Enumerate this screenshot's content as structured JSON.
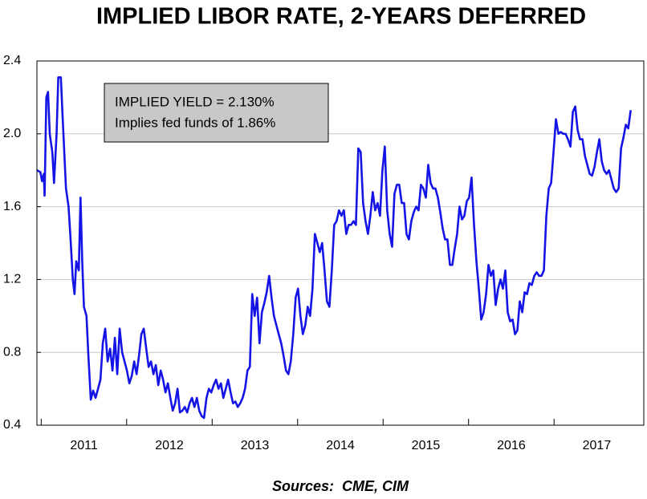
{
  "chart_data": {
    "type": "line",
    "title": "IMPLIED LIBOR RATE, 2-YEARS DEFERRED",
    "annotations": [
      "IMPLIED YIELD = 2.130%",
      "Implies fed funds of 1.86%"
    ],
    "source": "Sources:  CME, CIM",
    "xlim": [
      2010.95,
      2018.05
    ],
    "xticks": [
      2011,
      2012,
      2013,
      2014,
      2015,
      2016,
      2017
    ],
    "ylim": [
      0.4,
      2.4
    ],
    "yticks": [
      0.4,
      0.8,
      1.2,
      1.6,
      {
        "value": 2,
        "label": "2.0"
      },
      2.4
    ],
    "grid": true,
    "x": [
      2010.95,
      2010.99,
      2011.01,
      2011.03,
      2011.04,
      2011.06,
      2011.08,
      2011.1,
      2011.13,
      2011.15,
      2011.18,
      2011.2,
      2011.23,
      2011.25,
      2011.27,
      2011.29,
      2011.32,
      2011.34,
      2011.37,
      2011.39,
      2011.41,
      2011.44,
      2011.46,
      2011.48,
      2011.5,
      2011.53,
      2011.55,
      2011.58,
      2011.608,
      2011.636,
      2011.665,
      2011.693,
      2011.721,
      2011.749,
      2011.777,
      2011.806,
      2011.834,
      2011.862,
      2011.89,
      2011.918,
      2011.947,
      2011.975,
      2012.003,
      2012.031,
      2012.059,
      2012.088,
      2012.116,
      2012.144,
      2012.172,
      2012.2,
      2012.229,
      2012.257,
      2012.285,
      2012.313,
      2012.341,
      2012.37,
      2012.398,
      2012.426,
      2012.454,
      2012.482,
      2012.511,
      2012.539,
      2012.567,
      2012.595,
      2012.623,
      2012.652,
      2012.68,
      2012.708,
      2012.736,
      2012.764,
      2012.793,
      2012.821,
      2012.849,
      2012.877,
      2012.905,
      2012.934,
      2012.962,
      2012.99,
      2013.018,
      2013.046,
      2013.075,
      2013.103,
      2013.131,
      2013.159,
      2013.187,
      2013.216,
      2013.244,
      2013.272,
      2013.3,
      2013.328,
      2013.357,
      2013.385,
      2013.413,
      2013.441,
      2013.469,
      2013.497,
      2013.526,
      2013.554,
      2013.582,
      2013.61,
      2013.638,
      2013.667,
      2013.695,
      2013.723,
      2013.751,
      2013.779,
      2013.808,
      2013.836,
      2013.864,
      2013.892,
      2013.92,
      2013.949,
      2013.977,
      2014.005,
      2014.033,
      2014.061,
      2014.09,
      2014.118,
      2014.146,
      2014.174,
      2014.202,
      2014.231,
      2014.259,
      2014.287,
      2014.315,
      2014.343,
      2014.372,
      2014.4,
      2014.428,
      2014.456,
      2014.484,
      2014.513,
      2014.541,
      2014.569,
      2014.597,
      2014.625,
      2014.654,
      2014.682,
      2014.71,
      2014.738,
      2014.766,
      2014.795,
      2014.823,
      2014.851,
      2014.879,
      2014.907,
      2014.936,
      2014.964,
      2014.992,
      2015.02,
      2015.048,
      2015.077,
      2015.105,
      2015.133,
      2015.161,
      2015.189,
      2015.218,
      2015.246,
      2015.274,
      2015.302,
      2015.33,
      2015.359,
      2015.387,
      2015.415,
      2015.443,
      2015.471,
      2015.5,
      2015.528,
      2015.556,
      2015.584,
      2015.612,
      2015.641,
      2015.669,
      2015.697,
      2015.725,
      2015.753,
      2015.782,
      2015.81,
      2015.838,
      2015.866,
      2015.894,
      2015.923,
      2015.951,
      2015.979,
      2016.007,
      2016.035,
      2016.064,
      2016.092,
      2016.12,
      2016.148,
      2016.176,
      2016.205,
      2016.233,
      2016.261,
      2016.289,
      2016.317,
      2016.346,
      2016.374,
      2016.402,
      2016.43,
      2016.458,
      2016.487,
      2016.515,
      2016.543,
      2016.571,
      2016.599,
      2016.628,
      2016.656,
      2016.684,
      2016.712,
      2016.74,
      2016.769,
      2016.797,
      2016.825,
      2016.853,
      2016.881,
      2016.91,
      2016.938,
      2016.966,
      2016.994,
      2017.022,
      2017.051,
      2017.079,
      2017.107,
      2017.135,
      2017.163,
      2017.192,
      2017.22,
      2017.248,
      2017.276,
      2017.304,
      2017.333,
      2017.361,
      2017.389,
      2017.417,
      2017.445,
      2017.474,
      2017.502,
      2017.53,
      2017.558,
      2017.586,
      2017.615,
      2017.643,
      2017.671,
      2017.699,
      2017.727,
      2017.756,
      2017.784,
      2017.812,
      2017.84,
      2017.868,
      2017.897
    ],
    "series": [
      {
        "name": "Implied LIBOR rate",
        "color": "#1414e6",
        "values": [
          1.8,
          1.79,
          1.74,
          1.78,
          1.66,
          2.2,
          2.23,
          2.0,
          1.9,
          1.73,
          2.0,
          2.31,
          2.31,
          2.1,
          1.9,
          1.7,
          1.6,
          1.45,
          1.2,
          1.12,
          1.3,
          1.25,
          1.65,
          1.3,
          1.05,
          1.0,
          0.8,
          0.54,
          0.59,
          0.55,
          0.6,
          0.65,
          0.85,
          0.93,
          0.75,
          0.82,
          0.7,
          0.88,
          0.68,
          0.93,
          0.8,
          0.75,
          0.7,
          0.63,
          0.67,
          0.75,
          0.68,
          0.78,
          0.9,
          0.93,
          0.82,
          0.72,
          0.75,
          0.68,
          0.73,
          0.62,
          0.7,
          0.65,
          0.58,
          0.63,
          0.55,
          0.48,
          0.52,
          0.6,
          0.47,
          0.48,
          0.5,
          0.47,
          0.52,
          0.55,
          0.5,
          0.55,
          0.48,
          0.45,
          0.44,
          0.55,
          0.6,
          0.58,
          0.62,
          0.65,
          0.6,
          0.63,
          0.55,
          0.6,
          0.65,
          0.58,
          0.52,
          0.53,
          0.5,
          0.52,
          0.55,
          0.6,
          0.7,
          0.72,
          1.12,
          1.0,
          1.1,
          0.85,
          1.02,
          1.07,
          1.13,
          1.22,
          1.1,
          1.0,
          0.95,
          0.9,
          0.85,
          0.78,
          0.7,
          0.68,
          0.75,
          0.9,
          1.1,
          1.15,
          1.0,
          0.9,
          0.95,
          1.05,
          1.0,
          1.15,
          1.45,
          1.4,
          1.35,
          1.4,
          1.25,
          1.08,
          1.05,
          1.25,
          1.5,
          1.52,
          1.58,
          1.55,
          1.58,
          1.45,
          1.5,
          1.5,
          1.52,
          1.5,
          1.92,
          1.9,
          1.62,
          1.52,
          1.45,
          1.55,
          1.68,
          1.58,
          1.62,
          1.55,
          1.8,
          1.93,
          1.58,
          1.45,
          1.38,
          1.67,
          1.72,
          1.72,
          1.62,
          1.62,
          1.45,
          1.42,
          1.52,
          1.57,
          1.6,
          1.58,
          1.72,
          1.7,
          1.65,
          1.83,
          1.73,
          1.7,
          1.7,
          1.65,
          1.57,
          1.48,
          1.42,
          1.42,
          1.28,
          1.28,
          1.37,
          1.45,
          1.6,
          1.53,
          1.55,
          1.63,
          1.65,
          1.76,
          1.5,
          1.3,
          1.15,
          0.98,
          1.02,
          1.12,
          1.28,
          1.22,
          1.25,
          1.06,
          1.15,
          1.2,
          1.15,
          1.25,
          1.02,
          0.97,
          0.98,
          0.9,
          0.92,
          1.08,
          1.02,
          1.13,
          1.12,
          1.18,
          1.17,
          1.22,
          1.24,
          1.22,
          1.22,
          1.25,
          1.55,
          1.7,
          1.73,
          1.9,
          2.08,
          2.0,
          2.01,
          2.0,
          2.0,
          1.97,
          1.93,
          2.12,
          2.15,
          2.02,
          1.97,
          1.97,
          1.88,
          1.83,
          1.78,
          1.77,
          1.82,
          1.9,
          1.97,
          1.85,
          1.8,
          1.78,
          1.8,
          1.75,
          1.7,
          1.68,
          1.7,
          1.92,
          1.98,
          2.05,
          2.03,
          2.13
        ]
      }
    ]
  }
}
